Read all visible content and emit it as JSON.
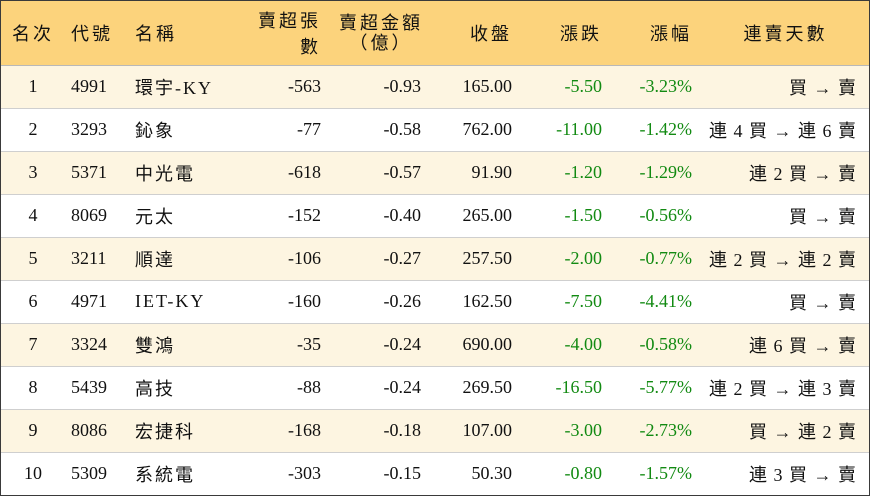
{
  "headers": {
    "rank": "名次",
    "code": "代號",
    "name": "名稱",
    "net_sell_lots": "賣超張數",
    "net_sell_amount_line1": "賣超金額",
    "net_sell_amount_line2": "（億）",
    "close": "收盤",
    "change": "漲跌",
    "change_pct": "漲幅",
    "streak": "連賣天數"
  },
  "rows": [
    {
      "rank": "1",
      "code": "4991",
      "name": "環宇-KY",
      "lots": "-563",
      "amount": "-0.93",
      "close": "165.00",
      "change": "-5.50",
      "pct": "-3.23%",
      "streak": "買 → 賣"
    },
    {
      "rank": "2",
      "code": "3293",
      "name": "鈊象",
      "lots": "-77",
      "amount": "-0.58",
      "close": "762.00",
      "change": "-11.00",
      "pct": "-1.42%",
      "streak": "連 4 買 → 連 6 賣"
    },
    {
      "rank": "3",
      "code": "5371",
      "name": "中光電",
      "lots": "-618",
      "amount": "-0.57",
      "close": "91.90",
      "change": "-1.20",
      "pct": "-1.29%",
      "streak": "連 2 買 → 賣"
    },
    {
      "rank": "4",
      "code": "8069",
      "name": "元太",
      "lots": "-152",
      "amount": "-0.40",
      "close": "265.00",
      "change": "-1.50",
      "pct": "-0.56%",
      "streak": "買 → 賣"
    },
    {
      "rank": "5",
      "code": "3211",
      "name": "順達",
      "lots": "-106",
      "amount": "-0.27",
      "close": "257.50",
      "change": "-2.00",
      "pct": "-0.77%",
      "streak": "連 2 買 → 連 2 賣"
    },
    {
      "rank": "6",
      "code": "4971",
      "name": "IET-KY",
      "lots": "-160",
      "amount": "-0.26",
      "close": "162.50",
      "change": "-7.50",
      "pct": "-4.41%",
      "streak": "買 → 賣"
    },
    {
      "rank": "7",
      "code": "3324",
      "name": "雙鴻",
      "lots": "-35",
      "amount": "-0.24",
      "close": "690.00",
      "change": "-4.00",
      "pct": "-0.58%",
      "streak": "連 6 買 → 賣"
    },
    {
      "rank": "8",
      "code": "5439",
      "name": "高技",
      "lots": "-88",
      "amount": "-0.24",
      "close": "269.50",
      "change": "-16.50",
      "pct": "-5.77%",
      "streak": "連 2 買 → 連 3 賣"
    },
    {
      "rank": "9",
      "code": "8086",
      "name": "宏捷科",
      "lots": "-168",
      "amount": "-0.18",
      "close": "107.00",
      "change": "-3.00",
      "pct": "-2.73%",
      "streak": "買 → 連 2 賣"
    },
    {
      "rank": "10",
      "code": "5309",
      "name": "系統電",
      "lots": "-303",
      "amount": "-0.15",
      "close": "50.30",
      "change": "-0.80",
      "pct": "-1.57%",
      "streak": "連 3 買 → 賣"
    }
  ],
  "colors": {
    "header_bg": "#fcd37c",
    "odd_row_bg": "#fdf5e1",
    "change_text": "#128a12"
  }
}
